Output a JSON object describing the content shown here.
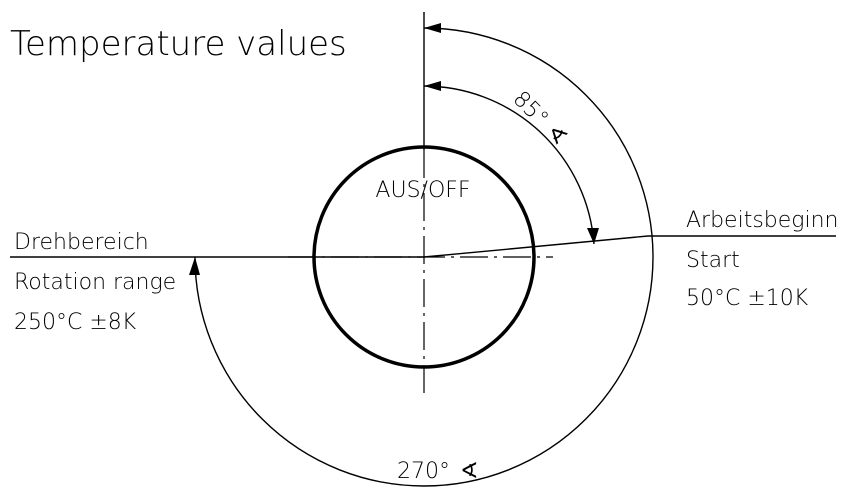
{
  "title": "Temperature values",
  "off_label": "AUS/OFF",
  "angle_small": "85°",
  "angle_large": "270°",
  "angle_symbol": "∢",
  "left_labels": {
    "line1": "Drehbereich",
    "line2": "Rotation range",
    "line3": "250°C ±8K"
  },
  "right_labels": {
    "line1": "Arbeitsbeginn",
    "line2": "Start",
    "line3": "50°C ±10K"
  }
}
